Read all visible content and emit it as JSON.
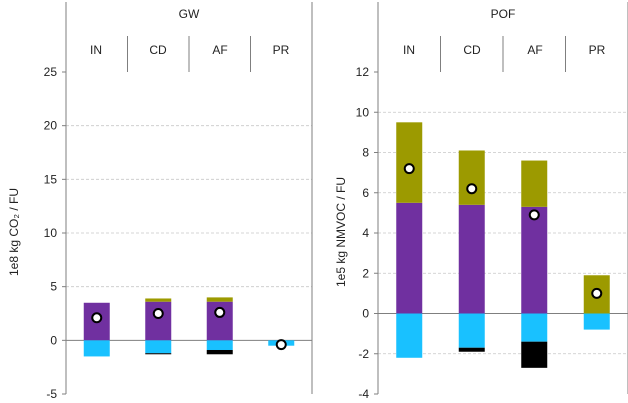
{
  "chart_data": [
    {
      "type": "bar",
      "title": "GW",
      "ylabel": "1e8 kg CO₂ / FU",
      "categories": [
        "IN",
        "CD",
        "AF",
        "PR"
      ],
      "ylim": [
        -5,
        25
      ],
      "yticks": [
        -5,
        0,
        5,
        10,
        15,
        20,
        25
      ],
      "grid": true,
      "stacked": true,
      "series": [
        {
          "color": "#7030a0",
          "values": [
            3.5,
            3.6,
            3.6,
            0.0
          ]
        },
        {
          "color": "#9c9a00",
          "values": [
            0.0,
            0.3,
            0.4,
            0.0
          ]
        },
        {
          "color": "#19c1ff",
          "values": [
            -1.5,
            -1.2,
            -0.9,
            -0.5
          ]
        },
        {
          "color": "#000000",
          "values": [
            0.0,
            -0.1,
            -0.4,
            0.0
          ]
        }
      ],
      "net": [
        2.1,
        2.5,
        2.6,
        -0.4
      ]
    },
    {
      "type": "bar",
      "title": "POF",
      "ylabel": "1e5 kg NMVOC / FU",
      "categories": [
        "IN",
        "CD",
        "AF",
        "PR"
      ],
      "ylim": [
        -4,
        12
      ],
      "yticks": [
        -4,
        -2,
        0,
        2,
        4,
        6,
        8,
        10,
        12
      ],
      "grid": true,
      "stacked": true,
      "series": [
        {
          "color": "#7030a0",
          "values": [
            5.5,
            5.4,
            5.3,
            0.0
          ]
        },
        {
          "color": "#9c9a00",
          "values": [
            4.0,
            2.7,
            2.3,
            1.9
          ]
        },
        {
          "color": "#19c1ff",
          "values": [
            -2.2,
            -1.7,
            -1.4,
            -0.8
          ]
        },
        {
          "color": "#000000",
          "values": [
            0.0,
            -0.2,
            -1.3,
            0.0
          ]
        }
      ],
      "net": [
        7.2,
        6.2,
        4.9,
        1.0
      ]
    }
  ],
  "colors": {
    "frame": "#7f7f7f",
    "grid": "#c8c8c8",
    "marker_fill": "#ffffff",
    "marker_stroke": "#000000"
  }
}
